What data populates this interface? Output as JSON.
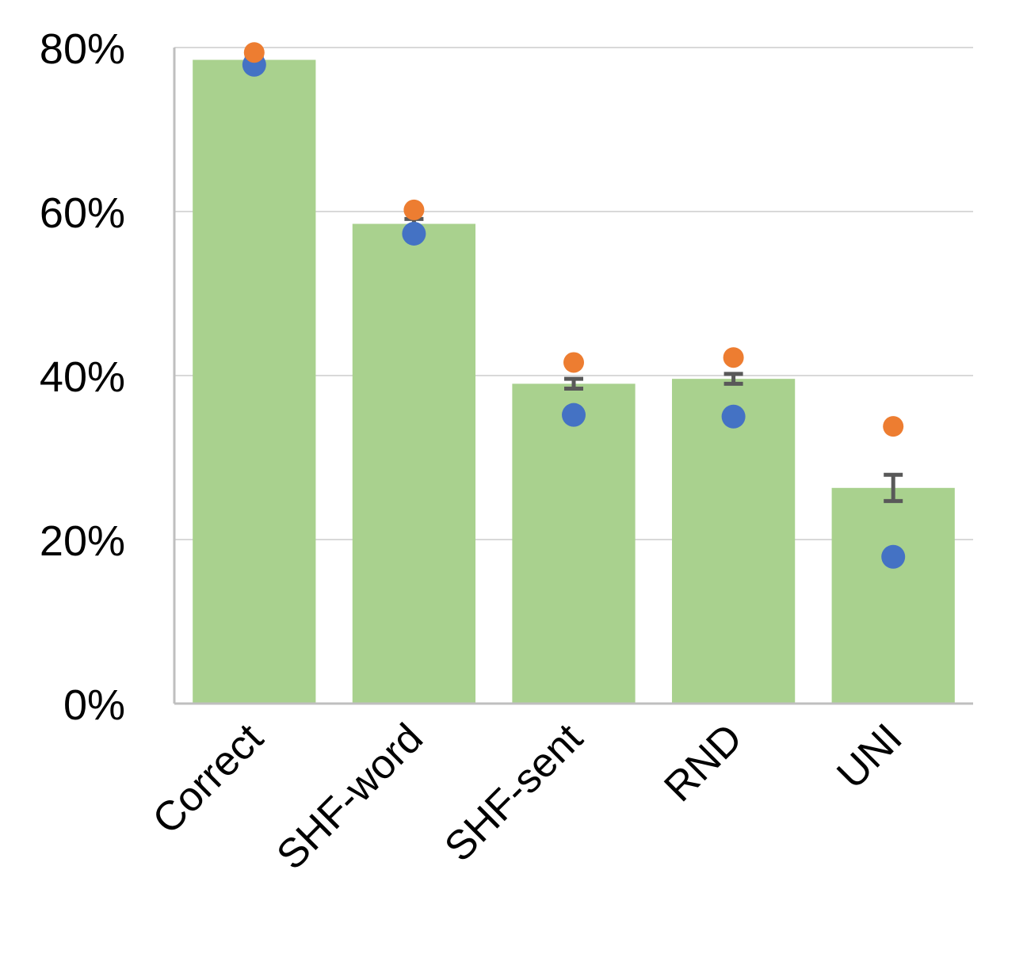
{
  "chart_data": {
    "type": "bar",
    "categories": [
      "Correct",
      "SHF-word",
      "SHF-sent",
      "RND",
      "UNI"
    ],
    "values": [
      78.5,
      58.5,
      39,
      39.6,
      26.3
    ],
    "error": [
      0.5,
      0.6,
      0.6,
      0.6,
      1.6
    ],
    "series": [
      {
        "values": [
          78.5,
          58.5,
          39,
          39.6,
          26.3
        ],
        "color": "#a9d18e"
      },
      {
        "values": [
          79.4,
          60.2,
          41.6,
          42.2,
          33.8
        ],
        "color": "#ed7d31"
      },
      {
        "values": [
          77.9,
          57.3,
          35.2,
          35.0,
          17.9
        ],
        "color": "#4472c4"
      }
    ],
    "y_ticks": [
      "0%",
      "20%",
      "40%",
      "60%",
      "80%"
    ],
    "ylim": [
      0,
      80
    ],
    "grid": true,
    "colors": {
      "bar": "#a9d18e",
      "error_bar": "#595959"
    }
  }
}
